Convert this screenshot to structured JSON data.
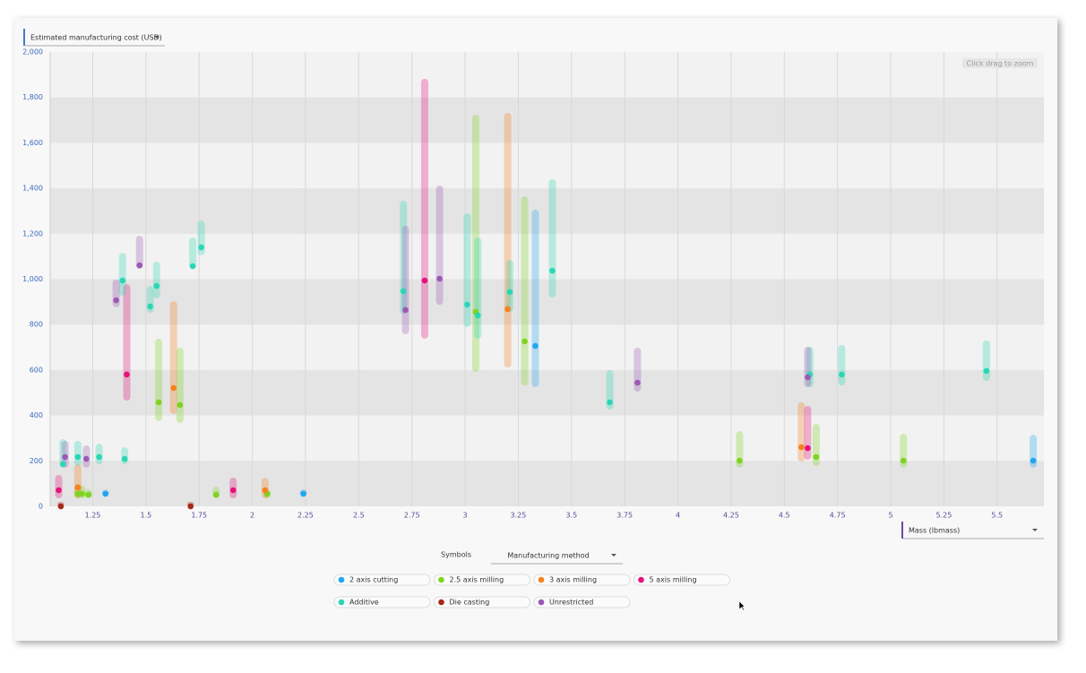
{
  "chart_data": {
    "type": "scatter",
    "y_selector": "Estimated manufacturing cost (USD)",
    "x_selector": "Mass (lbmass)",
    "zoom_hint": "Click drag to zoom",
    "symbols_label": "Symbols",
    "symbols_selector": "Manufacturing method",
    "xlim": [
      1.05,
      5.72
    ],
    "ylim": [
      0,
      2000
    ],
    "xticks": [
      1.25,
      1.5,
      1.75,
      2,
      2.25,
      2.5,
      2.75,
      3,
      3.25,
      3.5,
      3.75,
      4,
      4.25,
      4.5,
      4.75,
      5,
      5.25,
      5.5
    ],
    "yticks": [
      0,
      200,
      400,
      600,
      800,
      {
        "value": 1000,
        "label": "1,000"
      },
      {
        "value": 1200,
        "label": "1,200"
      },
      {
        "value": 1400,
        "label": "1,400"
      },
      {
        "value": 1600,
        "label": "1,600"
      },
      {
        "value": 1800,
        "label": "1,800"
      },
      {
        "value": 2000,
        "label": "2,000"
      }
    ],
    "grid": true,
    "series": [
      {
        "name": "2 axis cutting",
        "color": "#1ea7f0",
        "x": [
          1.31,
          2.24,
          3.33,
          5.67
        ],
        "values": [
          55,
          55,
          706,
          201
        ],
        "low": [
          45,
          45,
          525,
          170
        ],
        "high": [
          75,
          75,
          1306,
          315
        ]
      },
      {
        "name": "2.5 axis milling",
        "color": "#7ed321",
        "x": [
          1.18,
          1.2,
          1.23,
          1.56,
          1.66,
          1.83,
          2.07,
          3.05,
          3.28,
          4.29,
          4.65,
          5.06
        ],
        "values": [
          55,
          55,
          51,
          458,
          446,
          51,
          55,
          856,
          726,
          201,
          217,
          201
        ],
        "low": [
          35,
          35,
          35,
          375,
          367,
          35,
          35,
          592,
          532,
          170,
          178,
          170
        ],
        "high": [
          98,
          90,
          75,
          738,
          698,
          86,
          75,
          1724,
          1365,
          331,
          363,
          319
        ]
      },
      {
        "name": "3 axis milling",
        "color": "#f5821f",
        "x": [
          1.18,
          1.63,
          2.06,
          3.2,
          4.58
        ],
        "values": [
          83,
          521,
          71,
          868,
          260
        ],
        "low": [
          35,
          406,
          35,
          611,
          197
        ],
        "high": [
          185,
          903,
          126,
          1732,
          458
        ]
      },
      {
        "name": "5 axis milling",
        "color": "#e6127a",
        "x": [
          1.09,
          1.41,
          1.91,
          2.81,
          4.61
        ],
        "values": [
          71,
          580,
          71,
          994,
          256
        ],
        "low": [
          35,
          465,
          35,
          738,
          205
        ],
        "high": [
          138,
          978,
          126,
          1882,
          442
        ]
      },
      {
        "name": "Additive",
        "color": "#2ad6b4",
        "x": [
          1.11,
          1.18,
          1.28,
          1.4,
          1.39,
          1.52,
          1.55,
          1.72,
          1.76,
          2.71,
          3.01,
          3.06,
          3.21,
          3.41,
          3.68,
          4.62,
          4.77,
          5.45
        ],
        "values": [
          185,
          217,
          217,
          209,
          994,
          880,
          970,
          1057,
          1140,
          947,
          888,
          840,
          943,
          1037,
          458,
          580,
          580,
          596
        ],
        "low": [
          178,
          178,
          185,
          185,
          927,
          852,
          915,
          1045,
          1105,
          848,
          789,
          738,
          856,
          919,
          426,
          524,
          532,
          552
        ],
        "high": [
          296,
          288,
          276,
          260,
          1116,
          970,
          1077,
          1183,
          1258,
          1345,
          1290,
          1183,
          1085,
          1440,
          600,
          702,
          710,
          730
        ]
      },
      {
        "name": "Die casting",
        "color": "#a6281a",
        "x": [
          1.1,
          1.71
        ],
        "values": [
          0,
          0
        ],
        "low": [
          0,
          0
        ],
        "high": [
          20,
          20
        ]
      },
      {
        "name": "Unrestricted",
        "color": "#9b59b6",
        "x": [
          1.12,
          1.22,
          1.36,
          1.47,
          2.72,
          2.88,
          3.81,
          4.61
        ],
        "values": [
          217,
          209,
          907,
          1061,
          864,
          1002,
          544,
          568
        ],
        "low": [
          170,
          170,
          876,
          1045,
          757,
          887,
          505,
          525
        ],
        "high": [
          288,
          268,
          998,
          1191,
          1235,
          1412,
          698,
          702
        ]
      }
    ]
  }
}
